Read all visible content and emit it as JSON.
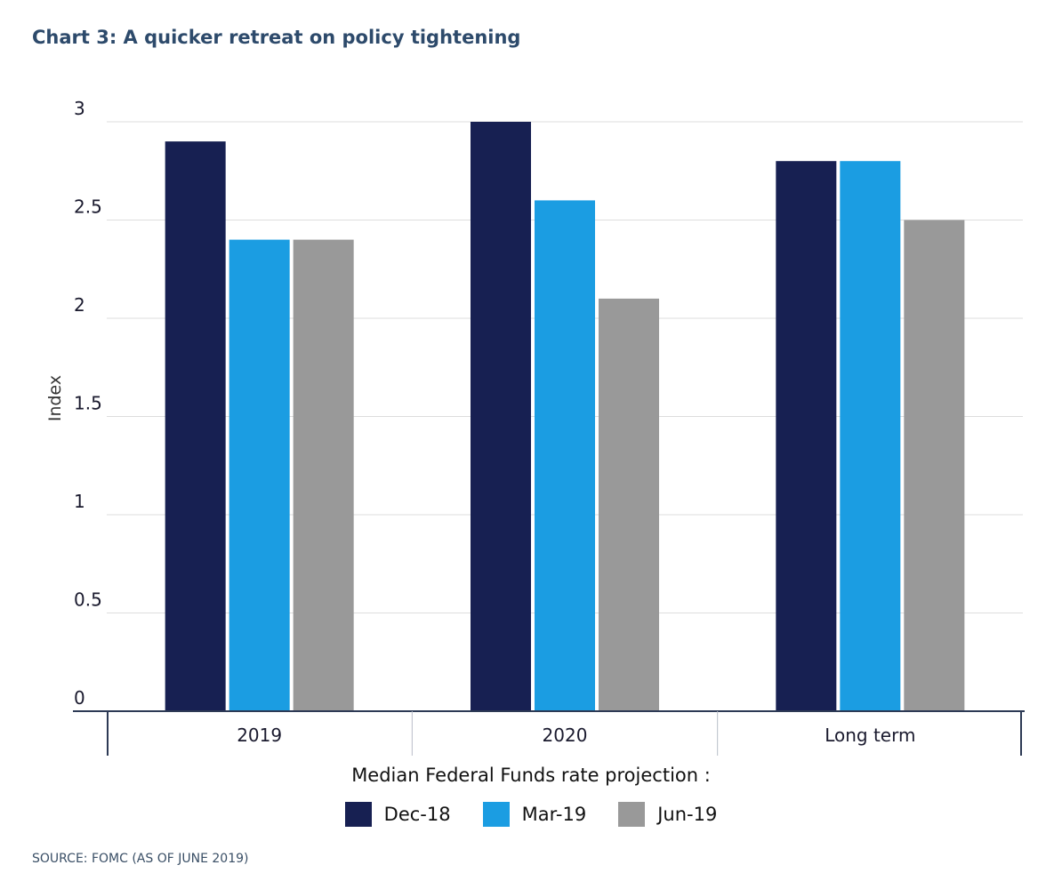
{
  "colors": {
    "title": "#2d4a6b",
    "grid": "#dddddd",
    "axis": "#2d3a55"
  },
  "chart_data": {
    "type": "bar",
    "title": "Chart 3: A quicker retreat on policy tightening",
    "xlabel": "Median Federal Funds rate projection :",
    "ylabel": "Index",
    "categories": [
      "2019",
      "2020",
      "Long term"
    ],
    "series": [
      {
        "name": "Dec-18",
        "color": "#172052",
        "values": [
          2.9,
          3.0,
          2.8
        ]
      },
      {
        "name": "Mar-19",
        "color": "#1b9de2",
        "values": [
          2.4,
          2.6,
          2.8
        ]
      },
      {
        "name": "Jun-19",
        "color": "#999999",
        "values": [
          2.4,
          2.1,
          2.5
        ]
      }
    ],
    "ylim": [
      0,
      3
    ],
    "yticks": [
      "0",
      "0.5",
      "1",
      "1.5",
      "2",
      "2.5",
      "3"
    ],
    "ytick_values": [
      0,
      0.5,
      1,
      1.5,
      2,
      2.5,
      3
    ],
    "grid": true,
    "legend_position": "bottom-center",
    "source": "SOURCE: FOMC (AS OF JUNE 2019)"
  }
}
